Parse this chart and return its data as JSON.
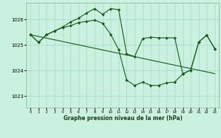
{
  "title": "Graphe pression niveau de la mer (hPa)",
  "bg_color": "#caf0e0",
  "grid_color": "#a0d8c8",
  "line_color": "#1a5c1a",
  "xlim": [
    -0.5,
    23.5
  ],
  "ylim": [
    1022.55,
    1026.65
  ],
  "yticks": [
    1023,
    1024,
    1025,
    1026
  ],
  "xticks": [
    0,
    1,
    2,
    3,
    4,
    5,
    6,
    7,
    8,
    9,
    10,
    11,
    12,
    13,
    14,
    15,
    16,
    17,
    18,
    19,
    20,
    21,
    22,
    23
  ],
  "series1_x": [
    0,
    1,
    2,
    3,
    4,
    5,
    6,
    7,
    8,
    9,
    10,
    11,
    12,
    13,
    14,
    15,
    16,
    17,
    18,
    19,
    20,
    21,
    22,
    23
  ],
  "series1_y": [
    1025.4,
    1025.1,
    1025.4,
    1025.55,
    1025.7,
    1025.9,
    1026.05,
    1026.25,
    1026.42,
    1026.2,
    1026.42,
    1026.38,
    1024.65,
    1024.55,
    1025.25,
    1025.3,
    1025.28,
    1025.28,
    1025.28,
    1023.87,
    1024.02,
    1025.12,
    1025.38,
    1024.85
  ],
  "series2_x": [
    0,
    1,
    2,
    3,
    4,
    5,
    6,
    7,
    8,
    9,
    10,
    11,
    12,
    13,
    14,
    15,
    16,
    17,
    18,
    19,
    20,
    21,
    22,
    23
  ],
  "series2_y": [
    1025.4,
    1025.1,
    1025.4,
    1025.55,
    1025.68,
    1025.75,
    1025.88,
    1025.92,
    1025.97,
    1025.85,
    1025.42,
    1024.82,
    1023.62,
    1023.42,
    1023.55,
    1023.42,
    1023.42,
    1023.52,
    1023.55,
    1023.87,
    1024.02,
    1025.12,
    1025.38,
    1024.85
  ],
  "series3_x": [
    0,
    23
  ],
  "series3_y": [
    1025.4,
    1023.88
  ]
}
